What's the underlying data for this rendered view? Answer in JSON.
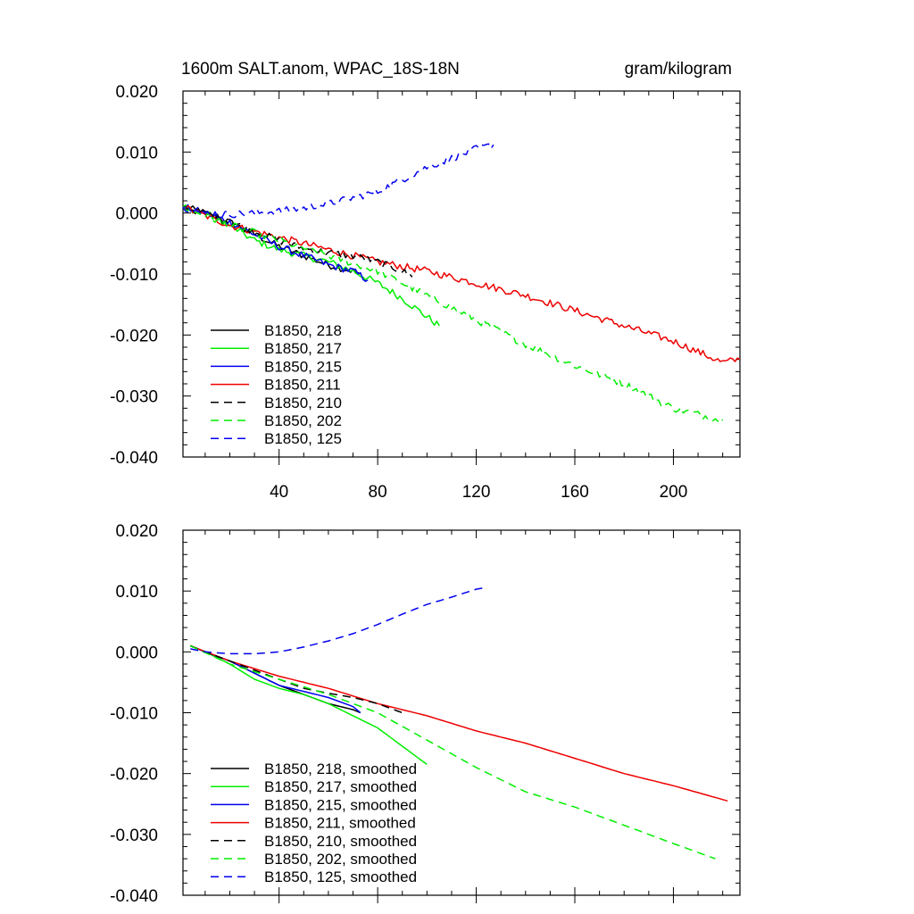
{
  "chart_data": [
    {
      "type": "line",
      "title": "1600m SALT.anom, WPAC_18S-18N",
      "units": "gram/kilogram",
      "xlabel": "",
      "ylabel": "",
      "xlim": [
        1,
        227
      ],
      "ylim": [
        -0.04,
        0.02
      ],
      "x_ticks": [
        40,
        80,
        120,
        160,
        200
      ],
      "x_tick_labels": [
        "40",
        "80",
        "120",
        "160",
        "200"
      ],
      "y_ticks": [
        0.02,
        0.01,
        0.0,
        -0.01,
        -0.02,
        -0.03,
        -0.04
      ],
      "y_tick_labels": [
        "0.020",
        "0.010",
        "0.000",
        "-0.010",
        "-0.020",
        "-0.030",
        "-0.040"
      ],
      "legend_position": "bottom-left",
      "noisy": true,
      "series": [
        {
          "name": "B1850, 218",
          "color": "#000000",
          "dash": "solid",
          "x": [
            1,
            10,
            20,
            30,
            40,
            50,
            60,
            70,
            73
          ],
          "y": [
            0.001,
            0.0,
            -0.0015,
            -0.0035,
            -0.0055,
            -0.007,
            -0.0085,
            -0.0095,
            -0.01
          ]
        },
        {
          "name": "B1850, 217",
          "color": "#00ee00",
          "dash": "solid",
          "x": [
            1,
            10,
            20,
            30,
            40,
            50,
            60,
            70,
            80,
            90,
            100,
            105
          ],
          "y": [
            0.001,
            0.0,
            -0.002,
            -0.0045,
            -0.006,
            -0.007,
            -0.008,
            -0.0095,
            -0.0115,
            -0.014,
            -0.017,
            -0.0185
          ]
        },
        {
          "name": "B1850, 215",
          "color": "#0000ee",
          "dash": "solid",
          "x": [
            1,
            10,
            20,
            30,
            40,
            50,
            60,
            70,
            76
          ],
          "y": [
            0.001,
            0.0,
            -0.0015,
            -0.0035,
            -0.0055,
            -0.007,
            -0.0085,
            -0.0095,
            -0.011
          ]
        },
        {
          "name": "B1850, 211",
          "color": "#ee0000",
          "dash": "solid",
          "x": [
            1,
            20,
            40,
            60,
            80,
            100,
            120,
            140,
            160,
            180,
            200,
            220,
            227
          ],
          "y": [
            0.001,
            -0.002,
            -0.004,
            -0.006,
            -0.008,
            -0.0095,
            -0.0115,
            -0.0135,
            -0.016,
            -0.0185,
            -0.021,
            -0.0245,
            -0.024
          ]
        },
        {
          "name": "B1850, 210",
          "color": "#000000",
          "dash": "dashed",
          "x": [
            1,
            10,
            20,
            30,
            40,
            50,
            60,
            70,
            80,
            90,
            94
          ],
          "y": [
            0.001,
            0.0,
            -0.0015,
            -0.003,
            -0.0045,
            -0.0058,
            -0.0065,
            -0.007,
            -0.008,
            -0.0095,
            -0.0105
          ]
        },
        {
          "name": "B1850, 202",
          "color": "#00ee00",
          "dash": "dashed",
          "x": [
            1,
            20,
            40,
            60,
            80,
            100,
            120,
            140,
            160,
            180,
            200,
            220
          ],
          "y": [
            0.001,
            -0.002,
            -0.0045,
            -0.007,
            -0.0095,
            -0.0135,
            -0.0175,
            -0.0215,
            -0.025,
            -0.028,
            -0.032,
            -0.034
          ]
        },
        {
          "name": "B1850, 125",
          "color": "#0000ee",
          "dash": "dashed",
          "x": [
            1,
            10,
            20,
            30,
            40,
            50,
            60,
            70,
            80,
            90,
            100,
            110,
            120,
            127
          ],
          "y": [
            0.001,
            0.0,
            -0.0002,
            0.0,
            0.0003,
            0.0008,
            0.0015,
            0.0025,
            0.0035,
            0.0055,
            0.0075,
            0.009,
            0.0105,
            0.0112
          ]
        }
      ]
    },
    {
      "type": "line",
      "title": "",
      "units": "",
      "xlabel": "",
      "ylabel": "",
      "xlim": [
        1,
        227
      ],
      "ylim": [
        -0.04,
        0.02
      ],
      "x_ticks": [
        40,
        80,
        120,
        160,
        200
      ],
      "x_tick_labels": [],
      "y_ticks": [
        0.02,
        0.01,
        0.0,
        -0.01,
        -0.02,
        -0.03,
        -0.04
      ],
      "y_tick_labels": [
        "0.020",
        "0.010",
        "0.000",
        "-0.010",
        "-0.020",
        "-0.030",
        "-0.040"
      ],
      "legend_position": "bottom-left",
      "noisy": false,
      "series": [
        {
          "name": "B1850, 218, smoothed",
          "color": "#000000",
          "dash": "solid",
          "x": [
            4,
            10,
            20,
            30,
            40,
            50,
            60,
            70,
            73
          ],
          "y": [
            0.001,
            0.0,
            -0.0015,
            -0.0035,
            -0.0055,
            -0.007,
            -0.0085,
            -0.0095,
            -0.01
          ]
        },
        {
          "name": "B1850, 217, smoothed",
          "color": "#00ee00",
          "dash": "solid",
          "x": [
            4,
            10,
            20,
            30,
            40,
            50,
            60,
            70,
            80,
            90,
            100
          ],
          "y": [
            0.001,
            0.0,
            -0.002,
            -0.0045,
            -0.006,
            -0.007,
            -0.0085,
            -0.0105,
            -0.0125,
            -0.0155,
            -0.0185
          ]
        },
        {
          "name": "B1850, 215, smoothed",
          "color": "#0000ee",
          "dash": "solid",
          "x": [
            4,
            10,
            20,
            30,
            40,
            50,
            60,
            70,
            73
          ],
          "y": [
            0.001,
            0.0,
            -0.0015,
            -0.0035,
            -0.0055,
            -0.0065,
            -0.0075,
            -0.009,
            -0.01
          ]
        },
        {
          "name": "B1850, 211, smoothed",
          "color": "#ee0000",
          "dash": "solid",
          "x": [
            4,
            20,
            40,
            60,
            80,
            100,
            120,
            140,
            160,
            180,
            200,
            222
          ],
          "y": [
            0.001,
            -0.0015,
            -0.004,
            -0.006,
            -0.0085,
            -0.0105,
            -0.013,
            -0.015,
            -0.0175,
            -0.02,
            -0.022,
            -0.0245
          ]
        },
        {
          "name": "B1850, 210, smoothed",
          "color": "#000000",
          "dash": "dashed",
          "x": [
            4,
            10,
            20,
            30,
            40,
            50,
            60,
            70,
            80,
            90
          ],
          "y": [
            0.001,
            0.0,
            -0.0015,
            -0.003,
            -0.0045,
            -0.006,
            -0.0068,
            -0.0075,
            -0.0085,
            -0.01
          ]
        },
        {
          "name": "B1850, 202, smoothed",
          "color": "#00ee00",
          "dash": "dashed",
          "x": [
            4,
            20,
            40,
            60,
            80,
            100,
            120,
            140,
            160,
            180,
            200,
            217
          ],
          "y": [
            0.001,
            -0.002,
            -0.0045,
            -0.007,
            -0.01,
            -0.0145,
            -0.019,
            -0.023,
            -0.0255,
            -0.0285,
            -0.0315,
            -0.034
          ]
        },
        {
          "name": "B1850, 125, smoothed",
          "color": "#0000ee",
          "dash": "dashed",
          "x": [
            4,
            10,
            20,
            30,
            40,
            50,
            60,
            70,
            80,
            90,
            100,
            110,
            120,
            123
          ],
          "y": [
            0.0005,
            0.0,
            -0.0003,
            -0.0003,
            0.0,
            0.0008,
            0.0018,
            0.003,
            0.0045,
            0.0062,
            0.0078,
            0.009,
            0.0103,
            0.0105
          ]
        }
      ]
    }
  ]
}
